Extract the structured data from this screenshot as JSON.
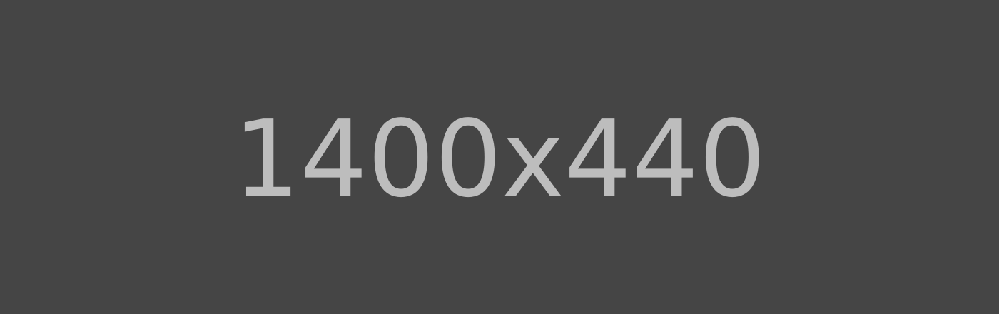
{
  "placeholder": {
    "text": "1400x440",
    "background_color": "#454545",
    "text_color": "#bdbdbd"
  }
}
